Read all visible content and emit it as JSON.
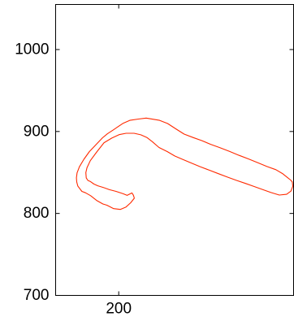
{
  "chart_data": {
    "type": "line",
    "title": "",
    "xlabel": "",
    "ylabel": "",
    "xlim": [
      143,
      358
    ],
    "ylim": [
      700,
      1055
    ],
    "x_ticks": [
      {
        "value": 200,
        "label": "200"
      }
    ],
    "y_ticks": [
      {
        "value": 700,
        "label": "700"
      },
      {
        "value": 800,
        "label": "800"
      },
      {
        "value": 900,
        "label": "900"
      },
      {
        "value": 1000,
        "label": "1000"
      }
    ],
    "grid": false,
    "series": [
      {
        "color": "#ff2a00",
        "closed": true,
        "x": [
          213.3,
          214.1,
          210.8,
          206.6,
          201.4,
          195.4,
          189.3,
          185.7,
          180.0,
          174.6,
          169.9,
          166.7,
          163.0,
          162.1,
          161.8,
          162.4,
          164.5,
          168.5,
          173.5,
          178.6,
          185.4,
          189.8,
          195.2,
          199.6,
          204.1,
          210.0,
          217.8,
          224.8,
          230.9,
          236.9,
          244.2,
          251.5,
          259.1,
          267.4,
          275.0,
          283.1,
          291.2,
          300.0,
          308.8,
          317.1,
          325.5,
          333.9,
          342.0,
          348.3,
          353.0,
          355.3,
          356.8,
          357.3,
          355.6,
          351.7,
          345.1,
          337.5,
          329.5,
          322.1,
          314.5,
          306.5,
          298.4,
          290.3,
          281.8,
          273.3,
          264.7,
          257.3,
          250.7,
          244.0,
          236.4,
          230.3,
          225.3,
          220.0,
          213.9,
          206.7,
          200.3,
          193.8,
          186.7,
          180.1,
          174.3,
          171.3,
          170.3,
          170.7,
          172.1,
          174.2,
          177.6,
          181.1,
          185.9,
          191.6,
          197.6,
          204.0,
          207.6,
          212.0,
          213.3
        ],
        "y": [
          822.2,
          818.6,
          813.0,
          807.9,
          804.9,
          805.9,
          810.1,
          811.6,
          815.9,
          821.7,
          825.2,
          826.9,
          833.5,
          838.3,
          843.5,
          849.5,
          857.0,
          866.1,
          875.5,
          882.7,
          892.4,
          897.2,
          902.0,
          906.1,
          910.1,
          913.6,
          915.2,
          916.4,
          915.0,
          913.6,
          909.7,
          903.3,
          896.8,
          892.6,
          888.9,
          884.3,
          880.4,
          875.7,
          870.9,
          866.6,
          862.0,
          857.3,
          853.4,
          848.3,
          843.2,
          840.8,
          838.4,
          833.2,
          827.2,
          823.4,
          822.5,
          825.5,
          829.4,
          833.0,
          836.6,
          840.3,
          844.3,
          848.4,
          852.8,
          857.2,
          862.0,
          866.2,
          870.1,
          875.4,
          880.5,
          887.6,
          892.8,
          895.9,
          897.8,
          897.8,
          896.1,
          892.0,
          886.3,
          875.0,
          864.4,
          855.8,
          849.8,
          843.4,
          840.3,
          839.1,
          835.9,
          833.8,
          831.8,
          829.0,
          826.9,
          824.1,
          822.1,
          825.0,
          822.2
        ]
      }
    ]
  }
}
